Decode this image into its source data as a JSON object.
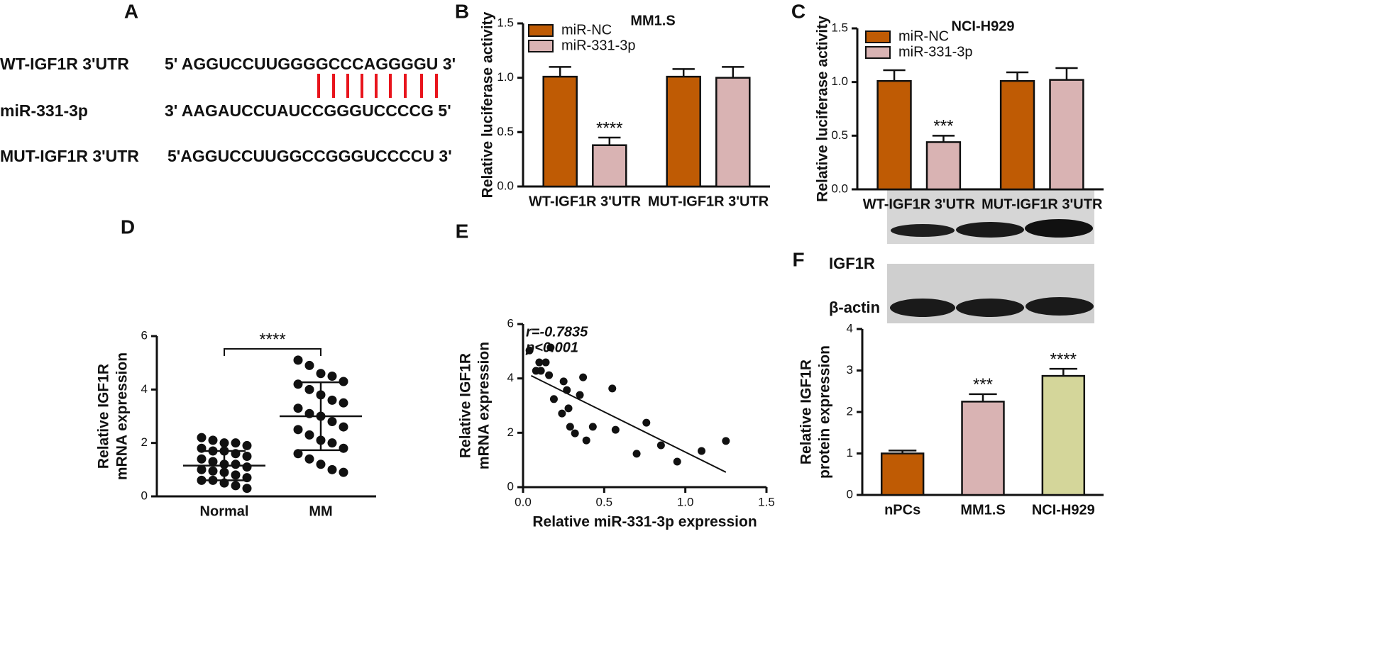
{
  "sequence_panel": {
    "label": "A",
    "rows": [
      {
        "name": "WT-IGF1R 3'UTR",
        "sequence": "5' AGGUCCUUGGGGCCCAGGGGU 3'"
      },
      {
        "name": "miR-331-3p",
        "sequence": "3' AAGAUCCUAUCCGGGUCCCCG 5'"
      },
      {
        "name": "MUT-IGF1R 3'UTR",
        "sequence": "5'AGGUCCUUGGCCGGGUCCCCU  3'"
      }
    ]
  },
  "chart_data": [
    {
      "type": "bar",
      "panel": "B",
      "title": "MM1.S",
      "y_label": "Relative luciferase activity",
      "categories": [
        "WT-IGF1R 3'UTR",
        "MUT-IGF1R 3'UTR"
      ],
      "series": [
        {
          "name": "miR-NC",
          "color": "#bf5b04",
          "values": [
            1.01,
            1.01
          ],
          "errors": [
            0.09,
            0.07
          ]
        },
        {
          "name": "miR-331-3p",
          "color": "#d9b3b3",
          "values": [
            0.38,
            1.0
          ],
          "errors": [
            0.07,
            0.1
          ],
          "significance": [
            "****",
            null
          ]
        }
      ],
      "ylim": [
        0,
        1.5
      ],
      "yticks": [
        {
          "value": 0,
          "label": "0.0"
        },
        0.5,
        {
          "value": 1,
          "label": "1.0"
        },
        0.5,
        {
          "value": 1.5,
          "label": "1.5"
        }
      ]
    },
    {
      "type": "bar",
      "panel": "C",
      "title": "NCI-H929",
      "y_label": "Relative luciferase activity",
      "categories": [
        "WT-IGF1R 3'UTR",
        "MUT-IGF1R 3'UTR"
      ],
      "series": [
        {
          "name": "miR-NC",
          "color": "#bf5b04",
          "values": [
            1.01,
            1.01
          ],
          "errors": [
            0.1,
            0.08
          ]
        },
        {
          "name": "miR-331-3p",
          "color": "#d9b3b3",
          "values": [
            0.44,
            1.02
          ],
          "errors": [
            0.06,
            0.11
          ],
          "significance": [
            "***",
            null
          ]
        }
      ],
      "ylim": [
        0,
        1.5
      ],
      "yticks": [
        {
          "value": 0,
          "label": "0.0"
        },
        0.5,
        {
          "value": 1,
          "label": "1.0"
        },
        {
          "value": 1.5,
          "label": "1.5"
        }
      ]
    },
    {
      "type": "dot",
      "panel": "D",
      "y_label": [
        "Relative IGF1R",
        "mRNA expression"
      ],
      "categories": [
        "Normal",
        "MM"
      ],
      "groups": [
        [
          2.2,
          2.1,
          2.0,
          2.0,
          1.9,
          1.8,
          1.7,
          1.7,
          1.6,
          1.5,
          1.4,
          1.3,
          1.2,
          1.2,
          1.1,
          1.0,
          0.95,
          0.9,
          0.8,
          0.7,
          0.6,
          0.6,
          0.5,
          0.4,
          0.3
        ],
        [
          5.1,
          4.9,
          4.6,
          4.5,
          4.3,
          4.2,
          4.0,
          3.8,
          3.6,
          3.5,
          3.3,
          3.1,
          3.0,
          2.8,
          2.6,
          2.5,
          2.3,
          2.1,
          2.0,
          1.8,
          1.6,
          1.4,
          1.2,
          1.0,
          0.9
        ]
      ],
      "means": [
        1.15,
        3.0
      ],
      "sd": [
        0.55,
        1.27
      ],
      "significance": "****",
      "ylim": [
        0,
        6
      ],
      "yticks": [
        0,
        2,
        4,
        6
      ]
    },
    {
      "type": "scatter",
      "panel": "E",
      "y_label": [
        "Relative IGF1R",
        "mRNA expression"
      ],
      "x_label": "Relative miR-331-3p expression",
      "annotations": [
        "r=-0.7835",
        "p<0.001"
      ],
      "x": [
        0.04,
        0.17,
        0.1,
        0.14,
        0.08,
        0.11,
        0.16,
        0.25,
        0.37,
        0.27,
        0.55,
        0.19,
        0.35,
        0.28,
        0.24,
        0.76,
        0.43,
        0.29,
        0.57,
        0.32,
        0.39,
        1.25,
        0.85,
        1.1,
        0.7,
        0.95
      ],
      "y": [
        5.03,
        5.14,
        4.59,
        4.59,
        4.28,
        4.28,
        4.12,
        3.89,
        4.04,
        3.57,
        3.63,
        3.24,
        3.39,
        2.9,
        2.71,
        2.37,
        2.22,
        2.22,
        2.11,
        1.98,
        1.72,
        1.7,
        1.54,
        1.33,
        1.23,
        0.94
      ],
      "fit": {
        "x": [
          0.05,
          1.25
        ],
        "y": [
          4.1,
          0.55
        ]
      },
      "xlim": [
        0,
        1.5
      ],
      "xticks": [
        {
          "value": 0,
          "label": "0.0"
        },
        0.5,
        {
          "value": 1,
          "label": "1.0"
        },
        1.5
      ],
      "ylim": [
        0,
        6
      ],
      "yticks": [
        0,
        2,
        4,
        6
      ]
    },
    {
      "type": "bar",
      "panel": "F",
      "y_label": [
        "Relative IGF1R",
        "protein expression"
      ],
      "blot_labels": [
        "IGF1R",
        "β-actin"
      ],
      "categories": [
        "nPCs",
        "MM1.S",
        "NCI-H929"
      ],
      "series": [
        {
          "colors": [
            "#bf5b04",
            "#d9b3b3",
            "#d4d69a"
          ],
          "values": [
            1.0,
            2.25,
            2.87
          ],
          "errors": [
            0.07,
            0.18,
            0.17
          ],
          "significance": [
            null,
            "***",
            "****"
          ]
        }
      ],
      "ylim": [
        0,
        4
      ],
      "yticks": [
        0,
        1,
        2,
        3,
        4
      ]
    }
  ]
}
